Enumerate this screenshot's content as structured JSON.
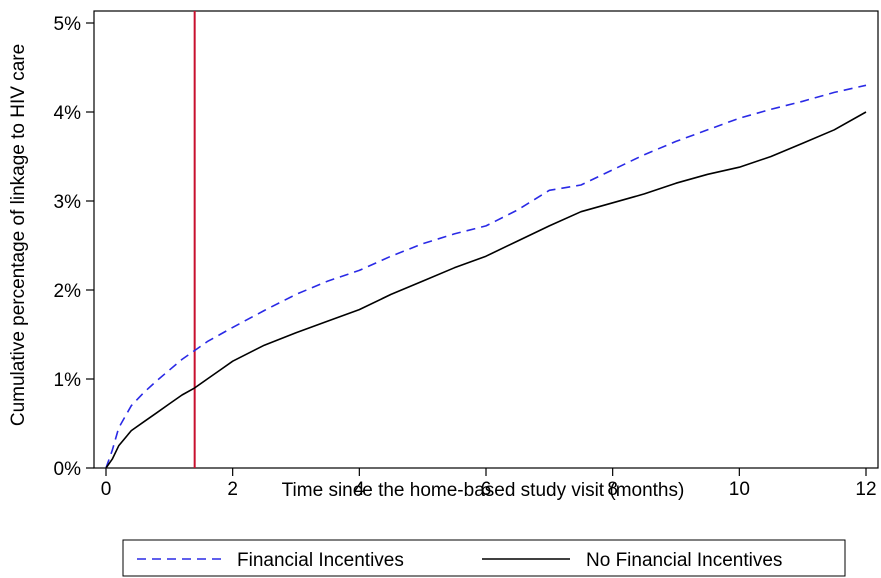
{
  "chart_data": {
    "type": "line",
    "title": "",
    "xlabel": "Time since the home-based study visit (months)",
    "ylabel": "Cumulative percentage of linkage to HIV care",
    "xlim": [
      0,
      12
    ],
    "ylim": [
      0,
      5
    ],
    "x_ticks": [
      0,
      2,
      4,
      6,
      8,
      10,
      12
    ],
    "x_tick_labels": [
      "0",
      "2",
      "4",
      "6",
      "8",
      "10",
      "12"
    ],
    "y_ticks": [
      0,
      1,
      2,
      3,
      4,
      5
    ],
    "y_tick_labels": [
      "0%",
      "1%",
      "2%",
      "3%",
      "4%",
      "5%"
    ],
    "grid": false,
    "legend_position": "bottom",
    "reference_line": {
      "x": 1.4,
      "color": "#c8102e"
    },
    "series": [
      {
        "name": "Financial Incentives",
        "color": "#2a2ae6",
        "style": "dashed",
        "x": [
          0,
          0.1,
          0.2,
          0.4,
          0.6,
          0.8,
          1.0,
          1.2,
          1.4,
          1.6,
          1.8,
          2.0,
          2.5,
          3.0,
          3.5,
          4.0,
          4.5,
          5.0,
          5.5,
          6.0,
          6.5,
          7.0,
          7.5,
          8.0,
          8.5,
          9.0,
          9.5,
          10.0,
          10.5,
          11.0,
          11.5,
          12.0
        ],
        "y": [
          0,
          0.2,
          0.45,
          0.7,
          0.85,
          0.98,
          1.1,
          1.22,
          1.32,
          1.42,
          1.5,
          1.58,
          1.77,
          1.95,
          2.1,
          2.22,
          2.38,
          2.52,
          2.63,
          2.72,
          2.9,
          3.12,
          3.18,
          3.35,
          3.52,
          3.67,
          3.8,
          3.93,
          4.03,
          4.12,
          4.22,
          4.3
        ]
      },
      {
        "name": "No Financial Incentives",
        "color": "#000000",
        "style": "solid",
        "x": [
          0,
          0.1,
          0.2,
          0.4,
          0.6,
          0.8,
          1.0,
          1.2,
          1.4,
          1.6,
          1.8,
          2.0,
          2.5,
          3.0,
          3.5,
          4.0,
          4.5,
          5.0,
          5.5,
          6.0,
          6.5,
          7.0,
          7.5,
          8.0,
          8.5,
          9.0,
          9.5,
          10.0,
          10.5,
          11.0,
          11.5,
          12.0
        ],
        "y": [
          0,
          0.1,
          0.25,
          0.42,
          0.52,
          0.62,
          0.72,
          0.82,
          0.9,
          1.0,
          1.1,
          1.2,
          1.38,
          1.52,
          1.65,
          1.78,
          1.95,
          2.1,
          2.25,
          2.38,
          2.55,
          2.72,
          2.88,
          2.98,
          3.08,
          3.2,
          3.3,
          3.38,
          3.5,
          3.65,
          3.8,
          4.0
        ]
      }
    ]
  }
}
